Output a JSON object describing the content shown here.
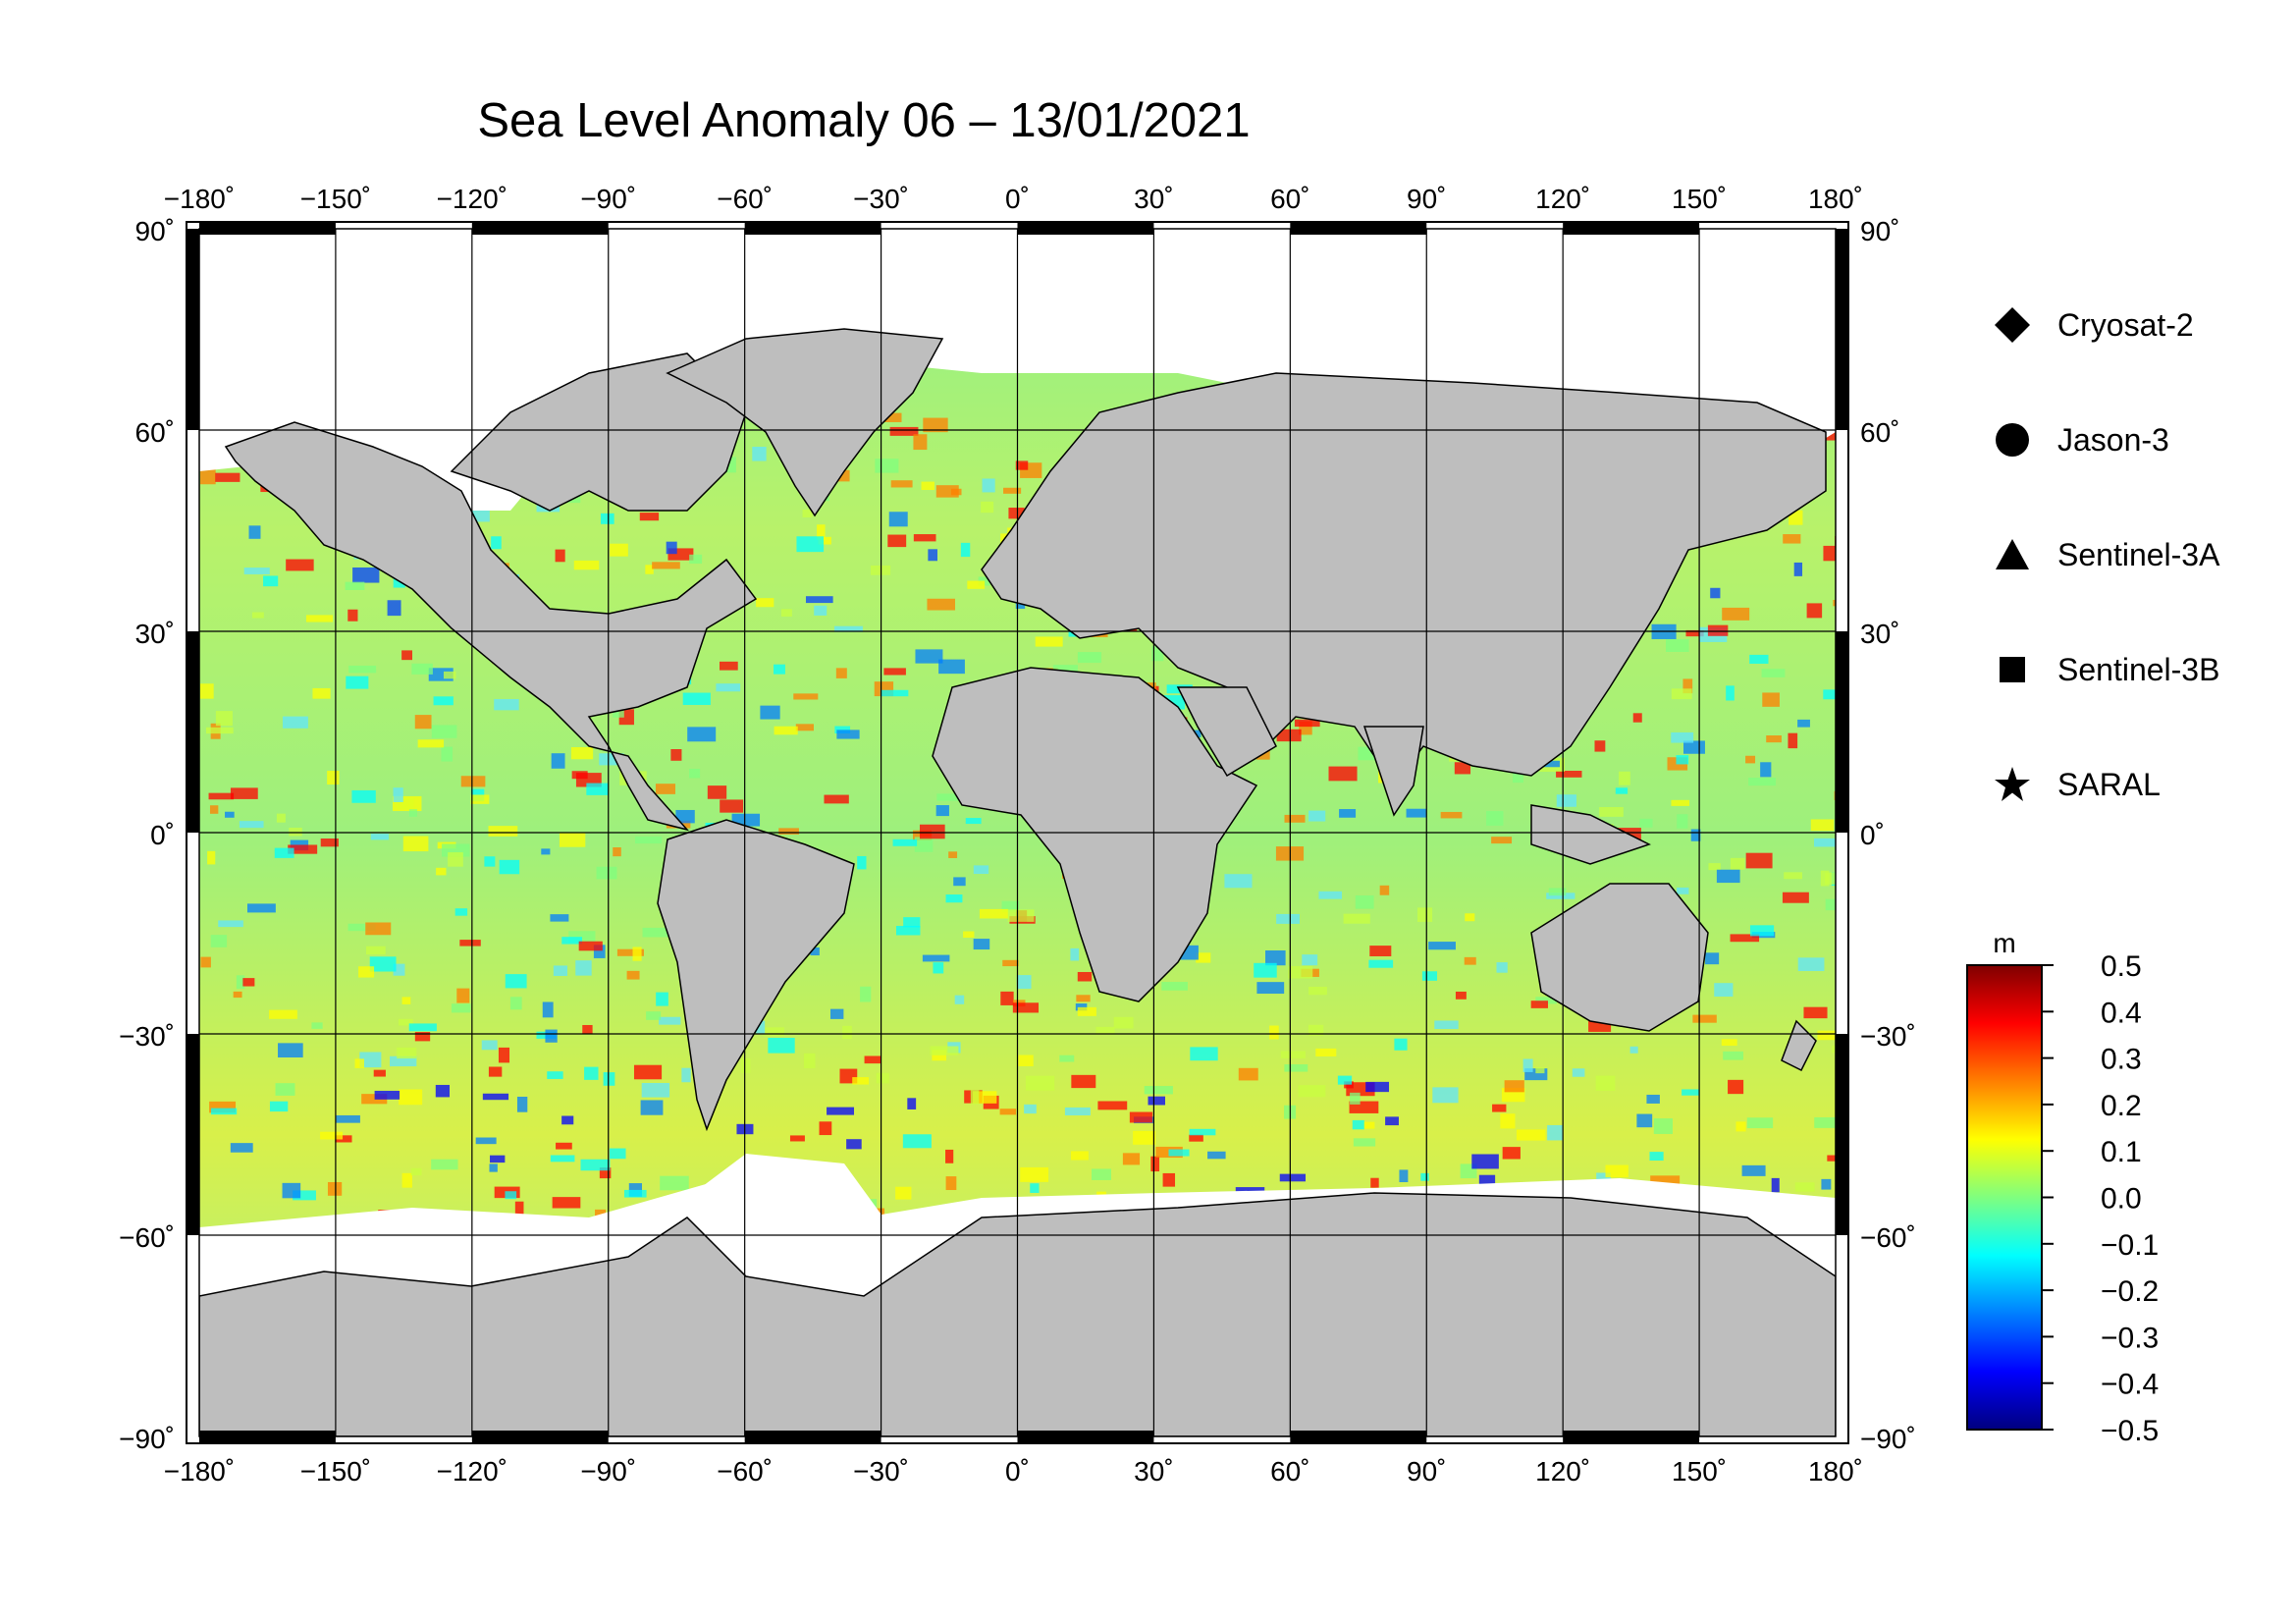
{
  "title": "Sea Level Anomaly 06 – 13/01/2021",
  "map": {
    "projection": "equirectangular",
    "lon_range": [
      -180,
      180
    ],
    "lat_range": [
      -90,
      90
    ],
    "lon_ticks": [
      "−180˚",
      "−150˚",
      "−120˚",
      "−90˚",
      "−60˚",
      "−30˚",
      "0˚",
      "30˚",
      "60˚",
      "90˚",
      "120˚",
      "150˚",
      "180˚"
    ],
    "lat_ticks": [
      "90˚",
      "60˚",
      "30˚",
      "0˚",
      "−30˚",
      "−60˚",
      "−90˚"
    ],
    "land_color": "#bebebe",
    "no_data_color": "#ffffff"
  },
  "legend": {
    "items": [
      {
        "label": "Cryosat-2",
        "symbol": "diamond-icon"
      },
      {
        "label": "Jason-3",
        "symbol": "circle-icon"
      },
      {
        "label": "Sentinel-3A",
        "symbol": "triangle-icon"
      },
      {
        "label": "Sentinel-3B",
        "symbol": "square-icon"
      },
      {
        "label": "SARAL",
        "symbol": "star-icon"
      }
    ]
  },
  "colorbar": {
    "unit": "m",
    "ticks": [
      "0.5",
      "0.4",
      "0.3",
      "0.2",
      "0.1",
      "0.0",
      "−0.1",
      "−0.2",
      "−0.3",
      "−0.4",
      "−0.5"
    ],
    "range": [
      -0.5,
      0.5
    ],
    "colors": [
      "#00007f",
      "#0000ff",
      "#007fff",
      "#00ffff",
      "#7fff7f",
      "#ffff00",
      "#ff7f00",
      "#ff0000",
      "#7f0000"
    ]
  }
}
